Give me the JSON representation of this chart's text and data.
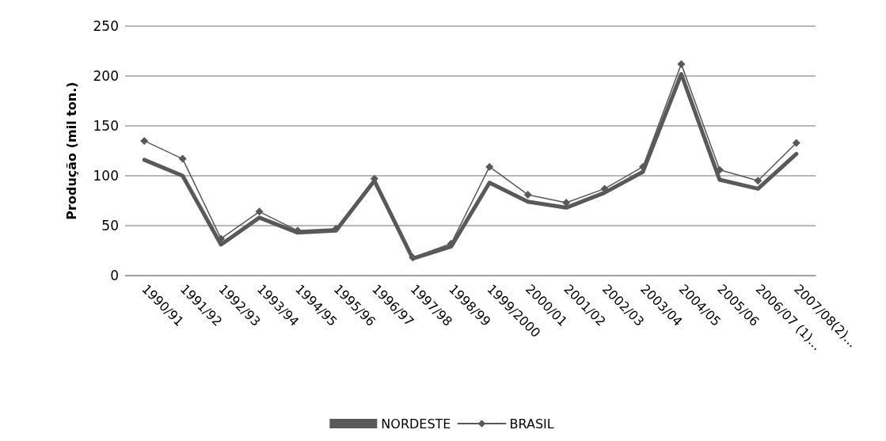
{
  "chart_data": {
    "type": "line",
    "ylabel": "Produção (mil ton.)",
    "categories": [
      "1990/91",
      "1991/92",
      "1992/93",
      "1993/94",
      "1994/95",
      "1995/96",
      "1996/97",
      "1997/98",
      "1998/99",
      "1999/2000",
      "2000/01",
      "2001/02",
      "2002/03",
      "2003/04",
      "2004/05",
      "2005/06",
      "2006/07 (1)...",
      "2007/08(2)..."
    ],
    "series": [
      {
        "name": "NORDESTE",
        "color": "#595959",
        "marker": "none",
        "values": [
          116,
          100,
          31,
          58,
          43,
          45,
          95,
          17,
          29,
          93,
          74,
          68,
          83,
          104,
          202,
          96,
          87,
          122
        ]
      },
      {
        "name": "BRASIL",
        "color": "#595959",
        "marker": "diamond",
        "values": [
          135,
          117,
          37,
          64,
          45,
          47,
          97,
          18,
          32,
          109,
          81,
          73,
          87,
          109,
          212,
          106,
          95,
          133
        ]
      }
    ],
    "ylim": [
      0,
      250
    ],
    "yticks": [
      0,
      50,
      100,
      150,
      200,
      250
    ],
    "grid": "y",
    "legend": "bottom"
  }
}
